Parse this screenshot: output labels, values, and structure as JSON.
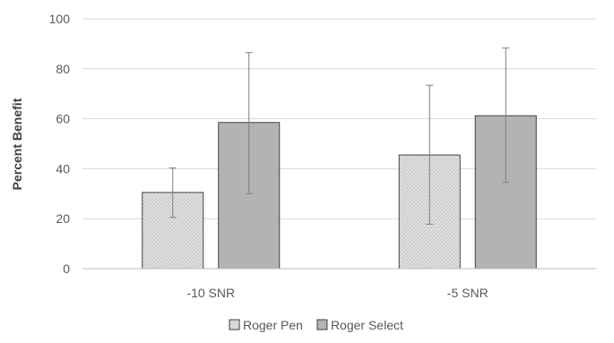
{
  "chart_data": {
    "type": "bar",
    "title": "",
    "xlabel": "",
    "ylabel": "Percent Benefit",
    "ylim": [
      0,
      100
    ],
    "yticks": [
      0,
      20,
      40,
      60,
      80,
      100
    ],
    "grid": true,
    "legend_position": "bottom",
    "categories": [
      "-10 SNR",
      "-5 SNR"
    ],
    "series": [
      {
        "name": "Roger Pen",
        "values": [
          30.5,
          45.5
        ],
        "error_low": [
          20.5,
          17.8
        ],
        "error_high": [
          40.3,
          73.4
        ],
        "color": "#d9d9d9",
        "pattern": "crosshatch"
      },
      {
        "name": "Roger Select",
        "values": [
          58.5,
          61.2
        ],
        "error_low": [
          30.0,
          34.5
        ],
        "error_high": [
          86.5,
          88.3
        ],
        "color": "#b3b3b3",
        "pattern": "solid"
      }
    ]
  },
  "colors": {
    "axis": "#bfbfbf",
    "grid": "#d9d9d9",
    "bar_outline": "#404040",
    "error_bar": "#7f7f7f"
  }
}
